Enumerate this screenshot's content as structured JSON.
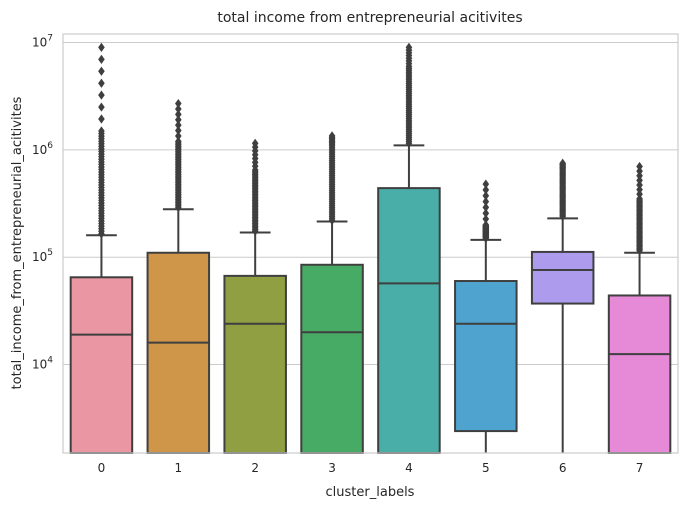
{
  "chart_data": {
    "type": "box",
    "title": "total income from entrepreneurial acitivites",
    "xlabel": "cluster_labels",
    "ylabel": "total_income_from_entrepreneurial_acitivites",
    "yscale": "log",
    "ylim": [
      1500,
      12000000
    ],
    "yticks": [
      {
        "value": 10000,
        "base": "10",
        "exp": "4"
      },
      {
        "value": 100000,
        "base": "10",
        "exp": "5"
      },
      {
        "value": 1000000,
        "base": "10",
        "exp": "6"
      },
      {
        "value": 10000000,
        "base": "10",
        "exp": "7"
      }
    ],
    "grid": true,
    "categories": [
      "0",
      "1",
      "2",
      "3",
      "4",
      "5",
      "6",
      "7"
    ],
    "boxes": [
      {
        "color": "#ea96a3",
        "whisker_low": 1500,
        "q1": 1500,
        "median": 19000,
        "q3": 65000,
        "whisker_high": 160000,
        "flier_min": 165000,
        "flier_max": 9000000,
        "dense_max": 1500000
      },
      {
        "color": "#cf9548",
        "whisker_low": 1500,
        "q1": 1500,
        "median": 16000,
        "q3": 110000,
        "whisker_high": 280000,
        "flier_min": 290000,
        "flier_max": 2700000,
        "dense_max": 1200000
      },
      {
        "color": "#8f9f42",
        "whisker_low": 1500,
        "q1": 1500,
        "median": 24000,
        "q3": 67000,
        "whisker_high": 170000,
        "flier_min": 175000,
        "flier_max": 1150000,
        "dense_max": 650000
      },
      {
        "color": "#48ab65",
        "whisker_low": 1500,
        "q1": 1500,
        "median": 20000,
        "q3": 85000,
        "whisker_high": 215000,
        "flier_min": 220000,
        "flier_max": 1350000,
        "dense_max": 1100000
      },
      {
        "color": "#4aaea8",
        "whisker_low": 1500,
        "q1": 1500,
        "median": 57000,
        "q3": 440000,
        "whisker_high": 1100000,
        "flier_min": 1150000,
        "flier_max": 9000000,
        "dense_max": 6000000
      },
      {
        "color": "#4ea4cf",
        "whisker_low": 1500,
        "q1": 2400,
        "median": 24000,
        "q3": 60000,
        "whisker_high": 145000,
        "flier_min": 150000,
        "flier_max": 480000,
        "dense_max": 200000
      },
      {
        "color": "#ad9cee",
        "whisker_low": 1500,
        "q1": 37000,
        "median": 76000,
        "q3": 112000,
        "whisker_high": 230000,
        "flier_min": 240000,
        "flier_max": 750000,
        "dense_max": 650000
      },
      {
        "color": "#e68ad8",
        "whisker_low": 1500,
        "q1": 1500,
        "median": 12500,
        "q3": 44000,
        "whisker_high": 110000,
        "flier_min": 115000,
        "flier_max": 700000,
        "dense_max": 350000
      }
    ]
  }
}
